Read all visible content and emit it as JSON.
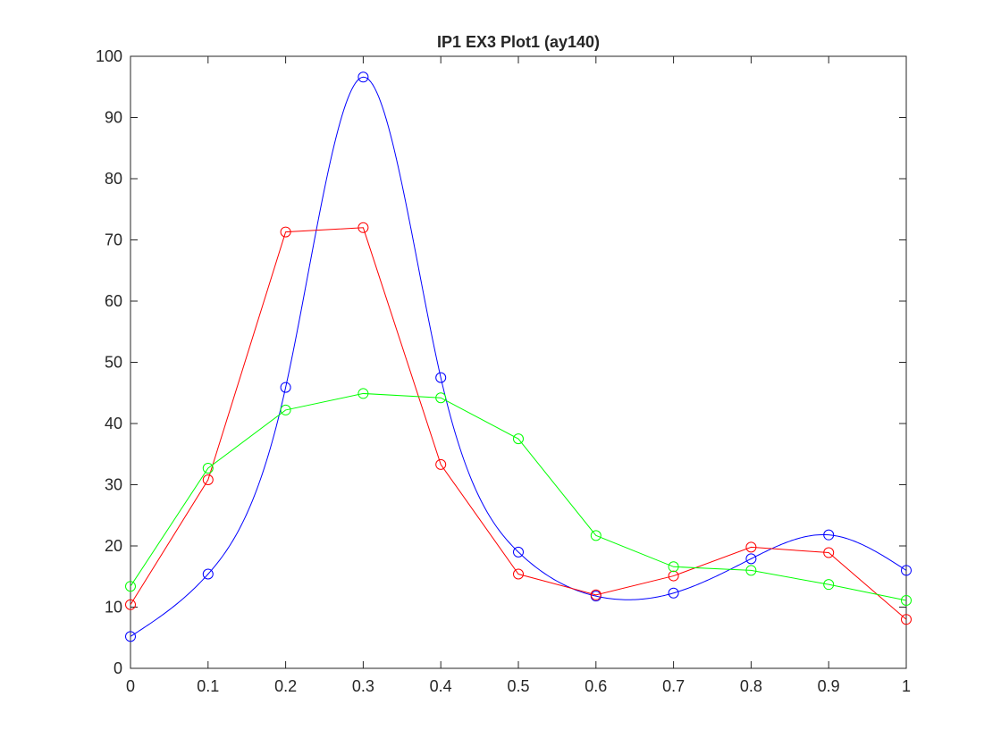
{
  "chart_data": {
    "type": "line",
    "title": "IP1 EX3 Plot1 (ay140)",
    "xlabel": "",
    "ylabel": "",
    "xlim": [
      0,
      1
    ],
    "ylim": [
      0,
      100
    ],
    "grid": false,
    "x_ticks": [
      0,
      0.1,
      0.2,
      0.3,
      0.4,
      0.5,
      0.6,
      0.7,
      0.8,
      0.9,
      1
    ],
    "x_tick_labels": [
      "0",
      "0.1",
      "0.2",
      "0.3",
      "0.4",
      "0.5",
      "0.6",
      "0.7",
      "0.8",
      "0.9",
      "1"
    ],
    "y_ticks": [
      0,
      10,
      20,
      30,
      40,
      50,
      60,
      70,
      80,
      90,
      100
    ],
    "y_tick_labels": [
      "0",
      "10",
      "20",
      "30",
      "40",
      "50",
      "60",
      "70",
      "80",
      "90",
      "100"
    ],
    "x": [
      0,
      0.1,
      0.2,
      0.3,
      0.4,
      0.5,
      0.6,
      0.7,
      0.8,
      0.9,
      1
    ],
    "series": [
      {
        "color": "#0000ff",
        "marker": "circle",
        "line": "smooth-spline",
        "values": [
          5.2,
          15.4,
          45.9,
          96.6,
          47.5,
          19.0,
          11.8,
          12.3,
          17.9,
          21.8,
          16.0
        ]
      },
      {
        "color": "#ff0000",
        "marker": "circle",
        "line": "straight",
        "values": [
          10.4,
          30.8,
          71.3,
          72.0,
          33.3,
          15.4,
          12.0,
          15.1,
          19.8,
          18.9,
          8.0
        ]
      },
      {
        "color": "#00ff00",
        "marker": "circle",
        "line": "straight",
        "values": [
          13.4,
          32.7,
          42.2,
          44.9,
          44.2,
          37.5,
          21.7,
          16.6,
          16.0,
          13.7,
          11.1
        ]
      }
    ]
  }
}
